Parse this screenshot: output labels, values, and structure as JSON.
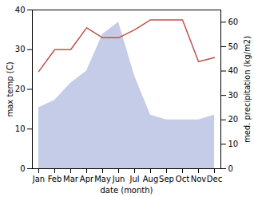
{
  "chart_data": {
    "type": "line",
    "xlabel": "date (month)",
    "ylabel": "max temp (C)",
    "y2label": "med. precipitation (kg/m2)",
    "categories": [
      "Jan",
      "Feb",
      "Mar",
      "Apr",
      "May",
      "Jun",
      "Jul",
      "Aug",
      "Sep",
      "Oct",
      "Nov",
      "Dec"
    ],
    "series": [
      {
        "type": "area",
        "axis": "y2",
        "color": "#c5cce8",
        "values": [
          25.0,
          28.0,
          35.0,
          40.0,
          55.0,
          60.0,
          38.0,
          22.0,
          20.0,
          20.0,
          20.0,
          22.0
        ]
      },
      {
        "type": "line",
        "color": "#c0504d",
        "values": [
          24.5,
          30.0,
          30.0,
          35.5,
          33.0,
          33.0,
          35.0,
          37.5,
          37.5,
          37.5,
          27.0,
          28.0
        ]
      }
    ],
    "ylim": [
      0,
      40
    ],
    "yticks": [
      0,
      10,
      20,
      30,
      40
    ],
    "y2lim": [
      0,
      65
    ],
    "y2ticks": [
      0,
      10,
      20,
      30,
      40,
      50,
      60
    ]
  }
}
